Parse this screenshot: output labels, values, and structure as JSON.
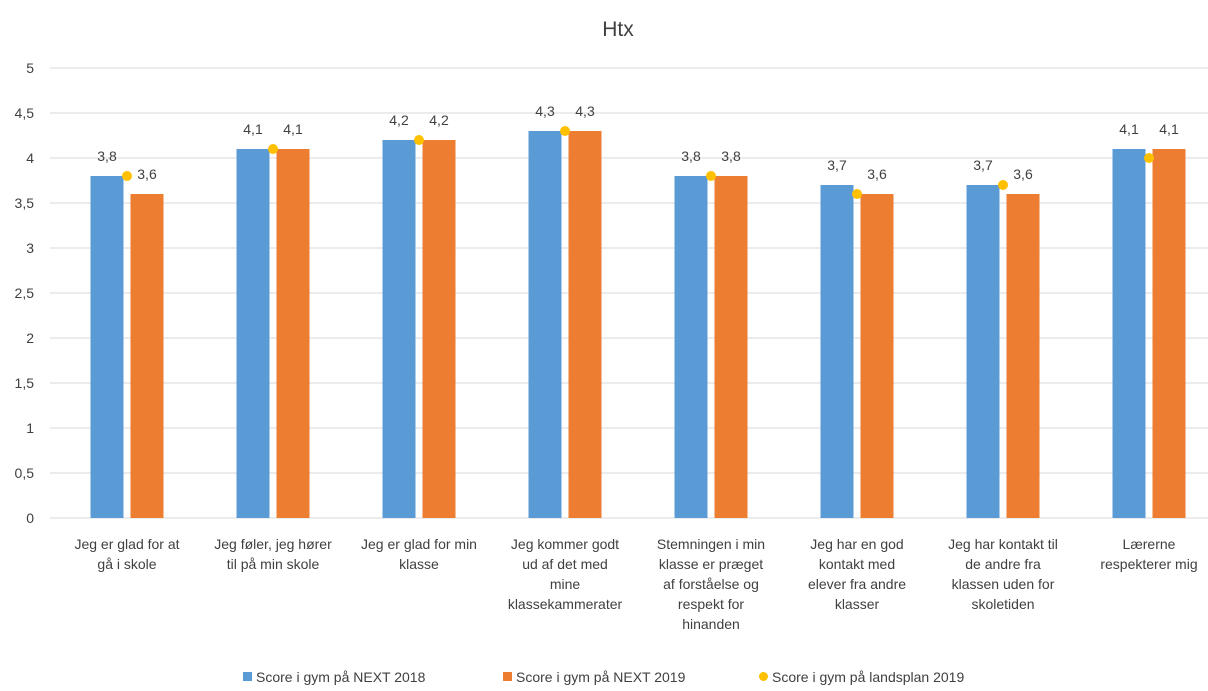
{
  "chart_data": {
    "type": "bar",
    "title": "Htx",
    "xlabel": "",
    "ylabel": "",
    "ylim": [
      0,
      5
    ],
    "yticks": [
      "0",
      "0,5",
      "1",
      "1,5",
      "2",
      "2,5",
      "3",
      "3,5",
      "4",
      "4,5",
      "5"
    ],
    "grid": true,
    "legend_position": "bottom",
    "categories": [
      [
        "Jeg er glad for at",
        "gå i skole"
      ],
      [
        "Jeg føler, jeg hører",
        "til på min skole"
      ],
      [
        "Jeg er glad for min",
        "klasse"
      ],
      [
        "Jeg kommer godt",
        "ud af det med",
        "mine",
        "klassekammerater"
      ],
      [
        "Stemningen i min",
        "klasse er præget",
        "af forståelse og",
        "respekt for",
        "hinanden"
      ],
      [
        "Jeg har en god",
        "kontakt med",
        "elever fra andre",
        "klasser"
      ],
      [
        "Jeg har kontakt til",
        "de andre fra",
        "klassen uden for",
        "skoletiden"
      ],
      [
        "Lærerne",
        "respekterer mig"
      ]
    ],
    "series": [
      {
        "name": "Score i gym på NEXT 2018",
        "kind": "bar",
        "color": "#5B9BD5",
        "values": [
          3.8,
          4.1,
          4.2,
          4.3,
          3.8,
          3.7,
          3.7,
          4.1
        ],
        "labels": [
          "3,8",
          "4,1",
          "4,2",
          "4,3",
          "3,8",
          "3,7",
          "3,7",
          "4,1"
        ]
      },
      {
        "name": "Score i gym på NEXT 2019",
        "kind": "bar",
        "color": "#ED7D31",
        "values": [
          3.6,
          4.1,
          4.2,
          4.3,
          3.8,
          3.6,
          3.6,
          4.1
        ],
        "labels": [
          "3,6",
          "4,1",
          "4,2",
          "4,3",
          "3,8",
          "3,6",
          "3,6",
          "4,1"
        ]
      },
      {
        "name": "Score i gym på landsplan 2019",
        "kind": "marker",
        "color": "#FFC000",
        "values": [
          3.8,
          4.1,
          4.2,
          4.3,
          3.8,
          3.6,
          3.7,
          4.0
        ]
      }
    ]
  }
}
